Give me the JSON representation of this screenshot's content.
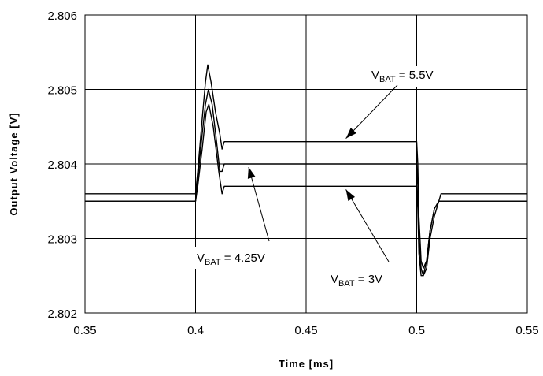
{
  "chart_data": {
    "type": "line",
    "title": "",
    "xlabel": "Time [ms]",
    "ylabel": "Output Voltage [V]",
    "xlim": [
      0.35,
      0.55
    ],
    "ylim": [
      2.802,
      2.806
    ],
    "xticks": [
      0.35,
      0.4,
      0.45,
      0.5,
      0.55
    ],
    "yticks": [
      2.802,
      2.803,
      2.804,
      2.805,
      2.806
    ],
    "xtick_labels": [
      "0.35",
      "0.4",
      "0.45",
      "0.5",
      "0.55"
    ],
    "ytick_labels": [
      "2.802",
      "2.803",
      "2.804",
      "2.805",
      "2.806"
    ],
    "grid": true,
    "line_color": "#000000",
    "series": [
      {
        "x": [
          0.35,
          0.4,
          0.401,
          0.403,
          0.4045,
          0.4055,
          0.407,
          0.409,
          0.411,
          0.412,
          0.413,
          0.5,
          0.5005,
          0.501,
          0.502,
          0.503,
          0.5045,
          0.506,
          0.508,
          0.51,
          0.511,
          0.55
        ],
        "y": [
          2.8036,
          2.8036,
          2.8039,
          2.8046,
          2.8051,
          2.80533,
          2.8051,
          2.8047,
          2.8044,
          2.8042,
          2.8043,
          2.8043,
          2.804,
          2.8033,
          2.8027,
          2.8026,
          2.8027,
          2.8031,
          2.8034,
          2.8035,
          2.8036,
          2.8036
        ]
      },
      {
        "x": [
          0.35,
          0.4,
          0.401,
          0.403,
          0.4045,
          0.4058,
          0.4075,
          0.4095,
          0.411,
          0.412,
          0.413,
          0.5,
          0.5005,
          0.501,
          0.502,
          0.503,
          0.5045,
          0.506,
          0.508,
          0.51,
          0.511,
          0.55
        ],
        "y": [
          2.8035,
          2.8035,
          2.8038,
          2.8044,
          2.8048,
          2.805,
          2.8048,
          2.8043,
          2.8039,
          2.8039,
          2.804,
          2.804,
          2.8037,
          2.803,
          2.8026,
          2.8025,
          2.8026,
          2.803,
          2.8033,
          2.8035,
          2.8035,
          2.8035
        ]
      },
      {
        "x": [
          0.35,
          0.4,
          0.401,
          0.403,
          0.4048,
          0.406,
          0.408,
          0.4105,
          0.412,
          0.413,
          0.5,
          0.5005,
          0.501,
          0.502,
          0.503,
          0.5045,
          0.506,
          0.508,
          0.51,
          0.511,
          0.55
        ],
        "y": [
          2.8035,
          2.8035,
          2.8037,
          2.8042,
          2.8047,
          2.8048,
          2.8045,
          2.8039,
          2.8036,
          2.8037,
          2.8037,
          2.8034,
          2.8028,
          2.8025,
          2.8025,
          2.8027,
          2.8031,
          2.8034,
          2.8035,
          2.8035,
          2.8035
        ]
      }
    ],
    "annotations": [
      {
        "main": "V",
        "sub": "BAT",
        "rest": " = 5.5V",
        "arrow_tip": [
          0.468,
          2.8043
        ]
      },
      {
        "main": "V",
        "sub": "BAT",
        "rest": " = 4.25V",
        "arrow_tip": [
          0.424,
          2.804
        ]
      },
      {
        "main": "V",
        "sub": "BAT",
        "rest": " = 3V",
        "arrow_tip": [
          0.468,
          2.8037
        ]
      }
    ]
  }
}
